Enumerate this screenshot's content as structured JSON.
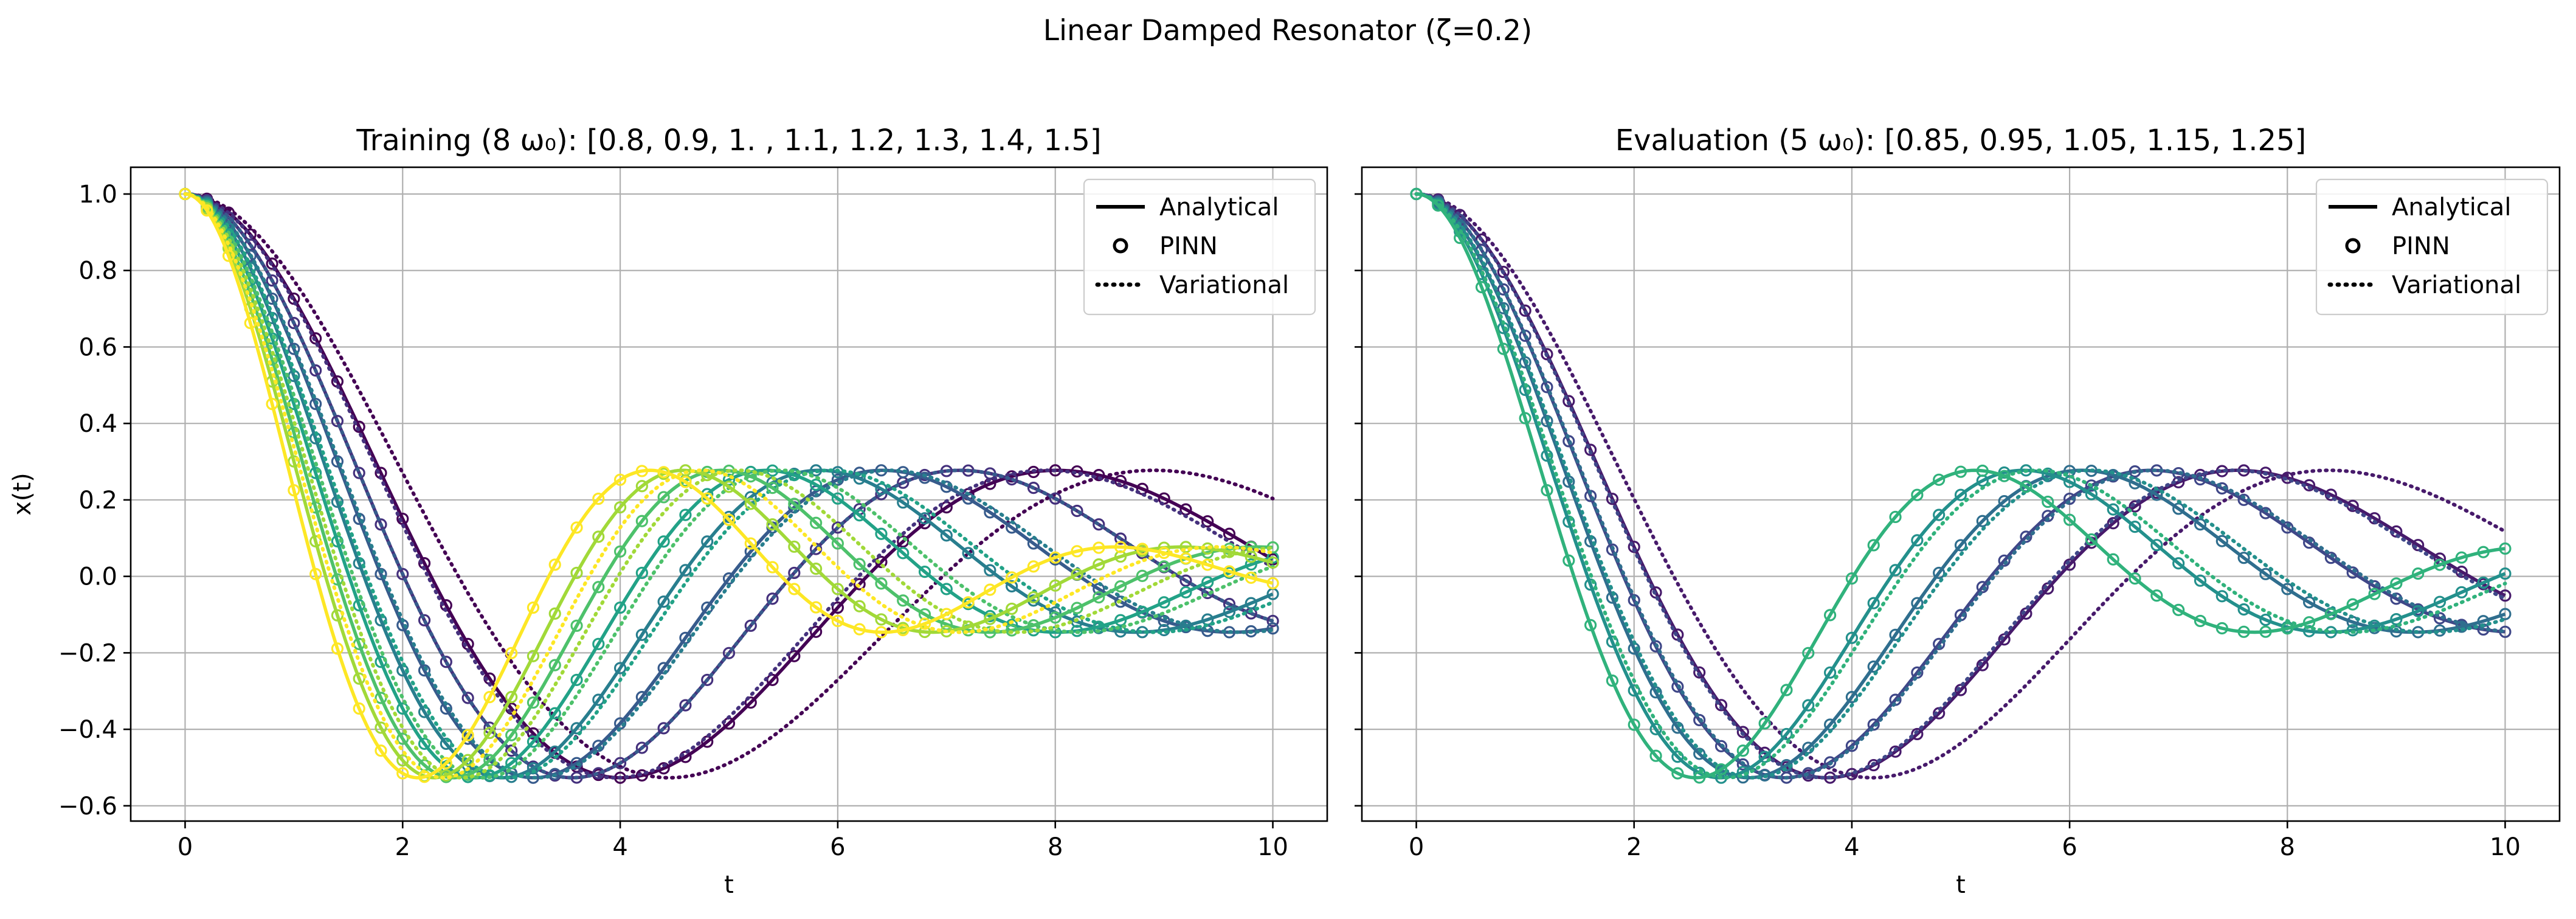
{
  "figure": {
    "suptitle": "Linear Damped Resonator  (ζ=0.2)"
  },
  "legend": {
    "analytical": "Analytical",
    "pinn": "PINN",
    "variational": "Variational"
  },
  "colors": {
    "grid": "#b0b0b0",
    "axis": "#000000",
    "viridis_stops": [
      "#440154",
      "#482878",
      "#3e4989",
      "#31688e",
      "#26828e",
      "#1f9e89",
      "#35b779",
      "#6ece58",
      "#b5de2b",
      "#fde725"
    ]
  },
  "chart_data": [
    {
      "type": "line",
      "title": "Training (8 ω₀): [0.8, 0.9, 1. , 1.1, 1.2, 1.3, 1.4, 1.5]",
      "xlabel": "t",
      "ylabel": "x(t)",
      "xlim": [
        -0.5,
        10.5
      ],
      "ylim": [
        -0.64,
        1.07
      ],
      "xticks": [
        0,
        2,
        4,
        6,
        8,
        10
      ],
      "xtick_labels": [
        "0",
        "2",
        "4",
        "6",
        "8",
        "10"
      ],
      "yticks": [
        -0.6,
        -0.4,
        -0.2,
        0.0,
        0.2,
        0.4,
        0.6,
        0.8,
        1.0
      ],
      "ytick_labels": [
        "−0.6",
        "−0.4",
        "−0.2",
        "0.0",
        "0.2",
        "0.4",
        "0.6",
        "0.8",
        "1.0"
      ],
      "show_ytick_labels": true,
      "grid": true,
      "legend_loc": "upper right",
      "zeta": 0.2,
      "t_range": [
        0,
        10
      ],
      "pinn_markers_every": 0.2,
      "variational_omega_scale": 0.9,
      "color_range": [
        0.8,
        1.5
      ],
      "series": [
        {
          "name": "ω₀=0.8",
          "omega": 0.8
        },
        {
          "name": "ω₀=0.9",
          "omega": 0.9
        },
        {
          "name": "ω₀=1.0",
          "omega": 1.0
        },
        {
          "name": "ω₀=1.1",
          "omega": 1.1
        },
        {
          "name": "ω₀=1.2",
          "omega": 1.2
        },
        {
          "name": "ω₀=1.3",
          "omega": 1.3
        },
        {
          "name": "ω₀=1.4",
          "omega": 1.4
        },
        {
          "name": "ω₀=1.5",
          "omega": 1.5
        }
      ]
    },
    {
      "type": "line",
      "title": "Evaluation (5 ω₀): [0.85, 0.95, 1.05, 1.15, 1.25]",
      "xlabel": "t",
      "ylabel": "",
      "xlim": [
        -0.5,
        10.5
      ],
      "ylim": [
        -0.64,
        1.07
      ],
      "xticks": [
        0,
        2,
        4,
        6,
        8,
        10
      ],
      "xtick_labels": [
        "0",
        "2",
        "4",
        "6",
        "8",
        "10"
      ],
      "yticks": [
        -0.6,
        -0.4,
        -0.2,
        0.0,
        0.2,
        0.4,
        0.6,
        0.8,
        1.0
      ],
      "ytick_labels": [
        "",
        "",
        "",
        "",
        "",
        "",
        "",
        "",
        ""
      ],
      "show_ytick_labels": false,
      "grid": true,
      "legend_loc": "upper right",
      "zeta": 0.2,
      "t_range": [
        0,
        10
      ],
      "pinn_markers_every": 0.2,
      "variational_omega_scale": 0.9,
      "color_range": [
        0.8,
        1.5
      ],
      "series": [
        {
          "name": "ω₀=0.85",
          "omega": 0.85
        },
        {
          "name": "ω₀=0.95",
          "omega": 0.95
        },
        {
          "name": "ω₀=1.05",
          "omega": 1.05
        },
        {
          "name": "ω₀=1.15",
          "omega": 1.15
        },
        {
          "name": "ω₀=1.25",
          "omega": 1.25
        }
      ]
    }
  ]
}
